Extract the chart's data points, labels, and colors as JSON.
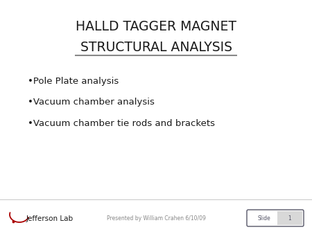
{
  "title_line1": "HALLD TAGGER MAGNET",
  "title_line2": "STRUCTURAL ANALYSIS",
  "bullet_items": [
    "•Pole Plate analysis",
    "•Vacuum chamber analysis",
    "•Vacuum chamber tie rods and brackets"
  ],
  "footer_presenter": "Presented by William Crahen 6/10/09",
  "slide_label": "Slide",
  "slide_number": "1",
  "bg_color": "#ffffff",
  "title_color": "#1a1a1a",
  "bullet_color": "#1a1a1a",
  "footer_color": "#888888",
  "slide_box_color": "#555566",
  "underline_color": "#888888",
  "jlab_text_color": "#1a1a1a",
  "jlab_arc_color": "#aa0000",
  "title_fontsize": 13.5,
  "bullet_fontsize": 9.5,
  "footer_fontsize": 5.5,
  "jlab_fontsize": 7.5
}
